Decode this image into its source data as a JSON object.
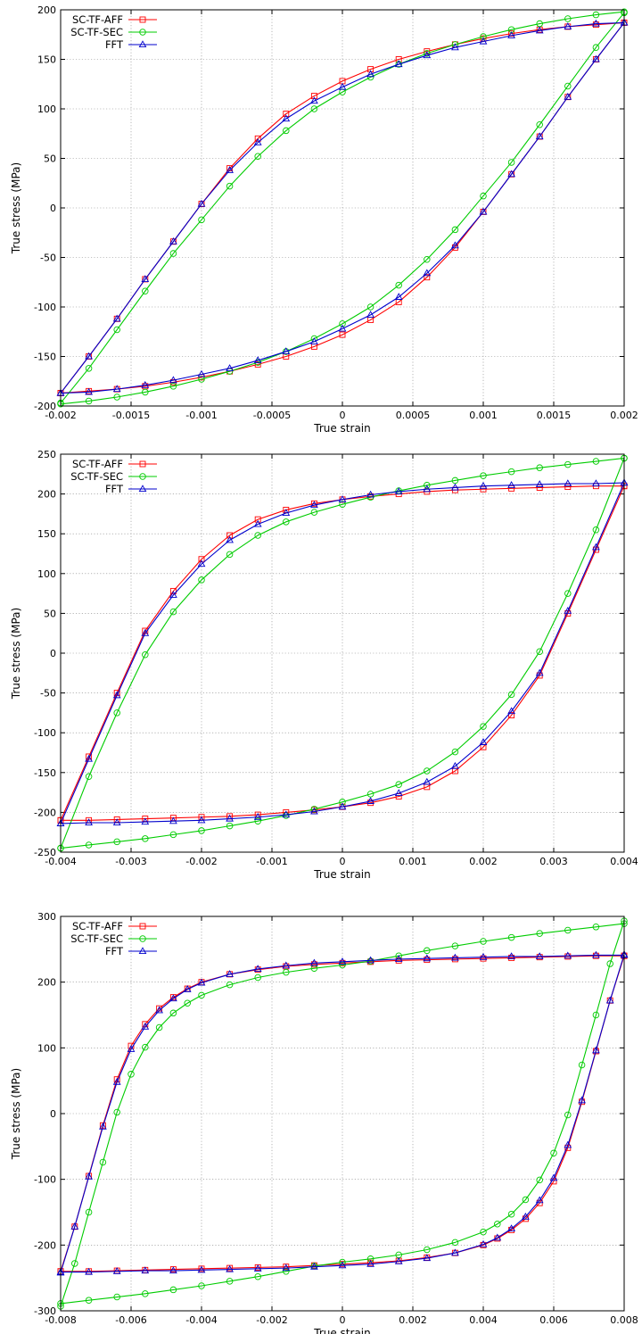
{
  "chart_data": [
    {
      "type": "line",
      "xlabel": "True strain",
      "ylabel": "True stress (MPa)",
      "xlim": [
        -0.002,
        0.002
      ],
      "ylim": [
        -200,
        200
      ],
      "xticks": [
        "-0.002",
        "-0.0015",
        "-0.001",
        "-0.0005",
        "0",
        "0.0005",
        "0.001",
        "0.0015",
        "0.002"
      ],
      "yticks": [
        "-200",
        "-150",
        "-100",
        "-50",
        "0",
        "50",
        "100",
        "150",
        "200"
      ],
      "grid": true,
      "legend_position": "top-left",
      "series": [
        {
          "name": "SC-TF-AFF",
          "color": "#ff0000",
          "marker": "square",
          "upper_x": [
            -0.002,
            -0.0018,
            -0.0016,
            -0.0014,
            -0.0012,
            -0.001,
            -0.0008,
            -0.0006,
            -0.0004,
            -0.0002,
            0,
            0.0002,
            0.0004,
            0.0006,
            0.0008,
            0.001,
            0.0012,
            0.0014,
            0.0016,
            0.0018,
            0.002
          ],
          "upper_y": [
            -187,
            -150,
            -112,
            -72,
            -34,
            4,
            40,
            70,
            95,
            113,
            128,
            140,
            150,
            158,
            165,
            171,
            176,
            180,
            183,
            185,
            187
          ],
          "lower_x": [
            0.002,
            0.0018,
            0.0016,
            0.0014,
            0.0012,
            0.001,
            0.0008,
            0.0006,
            0.0004,
            0.0002,
            0,
            -0.0002,
            -0.0004,
            -0.0006,
            -0.0008,
            -0.001,
            -0.0012,
            -0.0014,
            -0.0016,
            -0.0018,
            -0.002
          ],
          "lower_y": [
            187,
            150,
            112,
            72,
            34,
            -4,
            -40,
            -70,
            -95,
            -113,
            -128,
            -140,
            -150,
            -158,
            -165,
            -171,
            -176,
            -180,
            -183,
            -185,
            -187
          ]
        },
        {
          "name": "SC-TF-SEC",
          "color": "#00cc00",
          "marker": "circle",
          "upper_x": [
            -0.002,
            -0.0018,
            -0.0016,
            -0.0014,
            -0.0012,
            -0.001,
            -0.0008,
            -0.0006,
            -0.0004,
            -0.0002,
            0,
            0.0002,
            0.0004,
            0.0006,
            0.0008,
            0.001,
            0.0012,
            0.0014,
            0.0016,
            0.0018,
            0.002
          ],
          "upper_y": [
            -197,
            -162,
            -123,
            -84,
            -46,
            -12,
            22,
            52,
            78,
            100,
            117,
            132,
            145,
            156,
            165,
            173,
            180,
            186,
            191,
            195,
            198
          ],
          "lower_x": [
            0.002,
            0.0018,
            0.0016,
            0.0014,
            0.0012,
            0.001,
            0.0008,
            0.0006,
            0.0004,
            0.0002,
            0,
            -0.0002,
            -0.0004,
            -0.0006,
            -0.0008,
            -0.001,
            -0.0012,
            -0.0014,
            -0.0016,
            -0.0018,
            -0.002
          ],
          "lower_y": [
            197,
            162,
            123,
            84,
            46,
            12,
            -22,
            -52,
            -78,
            -100,
            -117,
            -132,
            -145,
            -156,
            -165,
            -173,
            -180,
            -186,
            -191,
            -195,
            -198
          ]
        },
        {
          "name": "FFT",
          "color": "#0000cc",
          "marker": "triangle",
          "upper_x": [
            -0.002,
            -0.0018,
            -0.0016,
            -0.0014,
            -0.0012,
            -0.001,
            -0.0008,
            -0.0006,
            -0.0004,
            -0.0002,
            0,
            0.0002,
            0.0004,
            0.0006,
            0.0008,
            0.001,
            0.0012,
            0.0014,
            0.0016,
            0.0018,
            0.002
          ],
          "upper_y": [
            -187,
            -150,
            -112,
            -72,
            -34,
            4,
            38,
            66,
            90,
            108,
            122,
            135,
            145,
            154,
            162,
            168,
            174,
            179,
            183,
            186,
            187
          ],
          "lower_x": [
            0.002,
            0.0018,
            0.0016,
            0.0014,
            0.0012,
            0.001,
            0.0008,
            0.0006,
            0.0004,
            0.0002,
            0,
            -0.0002,
            -0.0004,
            -0.0006,
            -0.0008,
            -0.001,
            -0.0012,
            -0.0014,
            -0.0016,
            -0.0018,
            -0.002
          ],
          "lower_y": [
            187,
            150,
            112,
            72,
            34,
            -4,
            -38,
            -66,
            -90,
            -108,
            -122,
            -135,
            -145,
            -154,
            -162,
            -168,
            -174,
            -179,
            -183,
            -186,
            -187
          ]
        }
      ]
    },
    {
      "type": "line",
      "xlabel": "True strain",
      "ylabel": "True stress (MPa)",
      "xlim": [
        -0.004,
        0.004
      ],
      "ylim": [
        -250,
        250
      ],
      "xticks": [
        "-0.004",
        "-0.003",
        "-0.002",
        "-0.001",
        "0",
        "0.001",
        "0.002",
        "0.003",
        "0.004"
      ],
      "yticks": [
        "-250",
        "-200",
        "-150",
        "-100",
        "-50",
        "0",
        "50",
        "100",
        "150",
        "200",
        "250"
      ],
      "grid": true,
      "legend_position": "top-left",
      "series": [
        {
          "name": "SC-TF-AFF",
          "color": "#ff0000",
          "marker": "square",
          "upper_x": [
            -0.004,
            -0.0036,
            -0.0032,
            -0.0028,
            -0.0024,
            -0.002,
            -0.0016,
            -0.0012,
            -0.0008,
            -0.0004,
            0,
            0.0004,
            0.0008,
            0.0012,
            0.0016,
            0.002,
            0.0024,
            0.0028,
            0.0032,
            0.0036,
            0.004
          ],
          "upper_y": [
            -210,
            -130,
            -50,
            28,
            78,
            118,
            148,
            168,
            180,
            188,
            193,
            197,
            200,
            203,
            205,
            206,
            207,
            208,
            209,
            210,
            210
          ],
          "lower_x": [
            0.004,
            0.0036,
            0.0032,
            0.0028,
            0.0024,
            0.002,
            0.0016,
            0.0012,
            0.0008,
            0.0004,
            0,
            -0.0004,
            -0.0008,
            -0.0012,
            -0.0016,
            -0.002,
            -0.0024,
            -0.0028,
            -0.0032,
            -0.0036,
            -0.004
          ],
          "lower_y": [
            210,
            130,
            50,
            -28,
            -78,
            -118,
            -148,
            -168,
            -180,
            -188,
            -193,
            -197,
            -200,
            -203,
            -205,
            -206,
            -207,
            -208,
            -209,
            -210,
            -210
          ]
        },
        {
          "name": "SC-TF-SEC",
          "color": "#00cc00",
          "marker": "circle",
          "upper_x": [
            -0.004,
            -0.0036,
            -0.0032,
            -0.0028,
            -0.0024,
            -0.002,
            -0.0016,
            -0.0012,
            -0.0008,
            -0.0004,
            0,
            0.0004,
            0.0008,
            0.0012,
            0.0016,
            0.002,
            0.0024,
            0.0028,
            0.0032,
            0.0036,
            0.004
          ],
          "upper_y": [
            -245,
            -155,
            -75,
            -2,
            52,
            92,
            124,
            148,
            165,
            177,
            187,
            196,
            204,
            211,
            217,
            223,
            228,
            233,
            237,
            241,
            245
          ],
          "lower_x": [
            0.004,
            0.0036,
            0.0032,
            0.0028,
            0.0024,
            0.002,
            0.0016,
            0.0012,
            0.0008,
            0.0004,
            0,
            -0.0004,
            -0.0008,
            -0.0012,
            -0.0016,
            -0.002,
            -0.0024,
            -0.0028,
            -0.0032,
            -0.0036,
            -0.004
          ],
          "lower_y": [
            245,
            155,
            75,
            2,
            -52,
            -92,
            -124,
            -148,
            -165,
            -177,
            -187,
            -196,
            -204,
            -211,
            -217,
            -223,
            -228,
            -233,
            -237,
            -241,
            -245
          ]
        },
        {
          "name": "FFT",
          "color": "#0000cc",
          "marker": "triangle",
          "upper_x": [
            -0.004,
            -0.0036,
            -0.0032,
            -0.0028,
            -0.0024,
            -0.002,
            -0.0016,
            -0.0012,
            -0.0008,
            -0.0004,
            0,
            0.0004,
            0.0008,
            0.0012,
            0.0016,
            0.002,
            0.0024,
            0.0028,
            0.0032,
            0.0036,
            0.004
          ],
          "upper_y": [
            -214,
            -133,
            -53,
            25,
            73,
            112,
            142,
            162,
            176,
            186,
            193,
            199,
            203,
            206,
            208,
            210,
            211,
            212,
            213,
            213,
            214
          ],
          "lower_x": [
            0.004,
            0.0036,
            0.0032,
            0.0028,
            0.0024,
            0.002,
            0.0016,
            0.0012,
            0.0008,
            0.0004,
            0,
            -0.0004,
            -0.0008,
            -0.0012,
            -0.0016,
            -0.002,
            -0.0024,
            -0.0028,
            -0.0032,
            -0.0036,
            -0.004
          ],
          "lower_y": [
            214,
            133,
            53,
            -25,
            -73,
            -112,
            -142,
            -162,
            -176,
            -186,
            -193,
            -199,
            -203,
            -206,
            -208,
            -210,
            -211,
            -212,
            -213,
            -213,
            -214
          ]
        }
      ]
    },
    {
      "type": "line",
      "xlabel": "True strain",
      "ylabel": "True stress (MPa)",
      "xlim": [
        -0.008,
        0.008
      ],
      "ylim": [
        -300,
        300
      ],
      "xticks": [
        "-0.008",
        "-0.006",
        "-0.004",
        "-0.002",
        "0",
        "0.002",
        "0.004",
        "0.006",
        "0.008"
      ],
      "yticks": [
        "-300",
        "-200",
        "-100",
        "0",
        "100",
        "200",
        "300"
      ],
      "grid": true,
      "legend_position": "top-left",
      "series": [
        {
          "name": "SC-TF-AFF",
          "color": "#ff0000",
          "marker": "square",
          "upper_x": [
            -0.008,
            -0.0076,
            -0.0072,
            -0.0068,
            -0.0064,
            -0.006,
            -0.0056,
            -0.0052,
            -0.0048,
            -0.0044,
            -0.004,
            -0.0032,
            -0.0024,
            -0.0016,
            -0.0008,
            0,
            0.0008,
            0.0016,
            0.0024,
            0.0032,
            0.004,
            0.0048,
            0.0056,
            0.0064,
            0.0072,
            0.008
          ],
          "upper_y": [
            -240,
            -172,
            -95,
            -18,
            52,
            103,
            136,
            160,
            177,
            190,
            200,
            212,
            219,
            224,
            227,
            229,
            231,
            233,
            234,
            235,
            236,
            237,
            238,
            239,
            240,
            240
          ],
          "lower_x": [
            0.008,
            0.0076,
            0.0072,
            0.0068,
            0.0064,
            0.006,
            0.0056,
            0.0052,
            0.0048,
            0.0044,
            0.004,
            0.0032,
            0.0024,
            0.0016,
            0.0008,
            0,
            -0.0008,
            -0.0016,
            -0.0024,
            -0.0032,
            -0.004,
            -0.0048,
            -0.0056,
            -0.0064,
            -0.0072,
            -0.008
          ],
          "lower_y": [
            240,
            172,
            95,
            18,
            -52,
            -103,
            -136,
            -160,
            -177,
            -190,
            -200,
            -212,
            -219,
            -224,
            -227,
            -229,
            -231,
            -233,
            -234,
            -235,
            -236,
            -237,
            -238,
            -239,
            -240,
            -240
          ]
        },
        {
          "name": "SC-TF-SEC",
          "color": "#00cc00",
          "marker": "circle",
          "upper_x": [
            -0.008,
            -0.0076,
            -0.0072,
            -0.0068,
            -0.0064,
            -0.006,
            -0.0056,
            -0.0052,
            -0.0048,
            -0.0044,
            -0.004,
            -0.0032,
            -0.0024,
            -0.0016,
            -0.0008,
            0,
            0.0008,
            0.0016,
            0.0024,
            0.0032,
            0.004,
            0.0048,
            0.0056,
            0.0064,
            0.0072,
            0.008
          ],
          "upper_y": [
            -293,
            -228,
            -150,
            -74,
            2,
            60,
            101,
            131,
            153,
            168,
            180,
            196,
            207,
            215,
            221,
            226,
            232,
            240,
            248,
            255,
            262,
            268,
            274,
            279,
            284,
            289
          ],
          "lower_x": [
            0.008,
            0.0076,
            0.0072,
            0.0068,
            0.0064,
            0.006,
            0.0056,
            0.0052,
            0.0048,
            0.0044,
            0.004,
            0.0032,
            0.0024,
            0.0016,
            0.0008,
            0,
            -0.0008,
            -0.0016,
            -0.0024,
            -0.0032,
            -0.004,
            -0.0048,
            -0.0056,
            -0.0064,
            -0.0072,
            -0.008
          ],
          "lower_y": [
            293,
            228,
            150,
            74,
            -2,
            -60,
            -101,
            -131,
            -153,
            -168,
            -180,
            -196,
            -207,
            -215,
            -221,
            -226,
            -232,
            -240,
            -248,
            -255,
            -262,
            -268,
            -274,
            -279,
            -284,
            -289
          ]
        },
        {
          "name": "FFT",
          "color": "#0000cc",
          "marker": "triangle",
          "upper_x": [
            -0.008,
            -0.0076,
            -0.0072,
            -0.0068,
            -0.0064,
            -0.006,
            -0.0056,
            -0.0052,
            -0.0048,
            -0.0044,
            -0.004,
            -0.0032,
            -0.0024,
            -0.0016,
            -0.0008,
            0,
            0.0008,
            0.0016,
            0.0024,
            0.0032,
            0.004,
            0.0048,
            0.0056,
            0.0064,
            0.0072,
            0.008
          ],
          "upper_y": [
            -242,
            -172,
            -96,
            -20,
            48,
            98,
            132,
            157,
            175,
            189,
            199,
            212,
            220,
            225,
            229,
            231,
            233,
            235,
            236,
            237,
            238,
            239,
            239,
            240,
            241,
            241
          ],
          "lower_x": [
            0.008,
            0.0076,
            0.0072,
            0.0068,
            0.0064,
            0.006,
            0.0056,
            0.0052,
            0.0048,
            0.0044,
            0.004,
            0.0032,
            0.0024,
            0.0016,
            0.0008,
            0,
            -0.0008,
            -0.0016,
            -0.0024,
            -0.0032,
            -0.004,
            -0.0048,
            -0.0056,
            -0.0064,
            -0.0072,
            -0.008
          ],
          "lower_y": [
            242,
            172,
            96,
            20,
            -48,
            -98,
            -132,
            -157,
            -175,
            -189,
            -199,
            -212,
            -220,
            -225,
            -229,
            -231,
            -233,
            -235,
            -236,
            -237,
            -238,
            -239,
            -239,
            -240,
            -241,
            -241
          ]
        }
      ]
    }
  ]
}
